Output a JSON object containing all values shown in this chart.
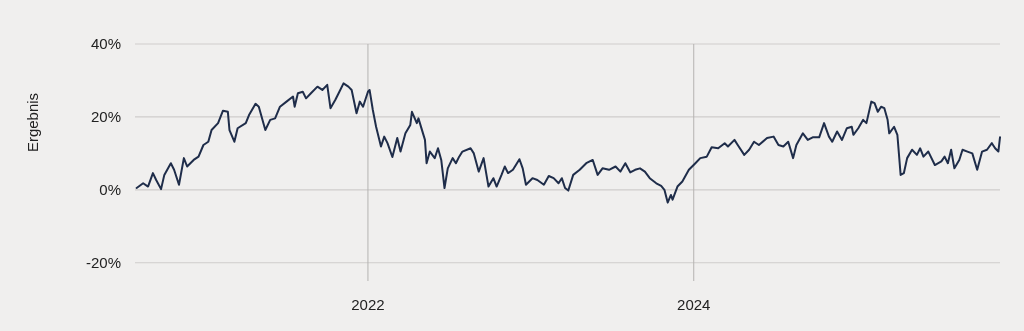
{
  "chart_data": {
    "type": "line",
    "ylabel": "Ergebnis",
    "xlim": [
      2020.57,
      2025.88
    ],
    "xticks": [
      2022,
      2024
    ],
    "ylim": [
      -25,
      40
    ],
    "yticks": [
      {
        "value": -20,
        "label": "-20%"
      },
      {
        "value": 0,
        "label": "0%"
      },
      {
        "value": 20,
        "label": "20%"
      },
      {
        "value": 40,
        "label": "40%"
      }
    ],
    "grid": true,
    "marker": "none",
    "line_style": "solid",
    "series": [
      {
        "color": "#1f2d4a",
        "x": [
          2020.58,
          2020.62,
          2020.65,
          2020.68,
          2020.7,
          2020.73,
          2020.75,
          2020.79,
          2020.81,
          2020.84,
          2020.87,
          2020.89,
          2020.93,
          2020.96,
          2020.99,
          2021.02,
          2021.04,
          2021.08,
          2021.11,
          2021.14,
          2021.15,
          2021.18,
          2021.2,
          2021.25,
          2021.27,
          2021.31,
          2021.33,
          2021.37,
          2021.4,
          2021.43,
          2021.46,
          2021.5,
          2021.54,
          2021.55,
          2021.57,
          2021.6,
          2021.62,
          2021.65,
          2021.69,
          2021.72,
          2021.75,
          2021.77,
          2021.8,
          2021.82,
          2021.85,
          2021.88,
          2021.9,
          2021.93,
          2021.95,
          2021.97,
          2022.0,
          2022.01,
          2022.03,
          2022.05,
          2022.08,
          2022.1,
          2022.12,
          2022.15,
          2022.18,
          2022.2,
          2022.23,
          2022.26,
          2022.27,
          2022.3,
          2022.31,
          2022.35,
          2022.36,
          2022.38,
          2022.41,
          2022.43,
          2022.45,
          2022.47,
          2022.49,
          2022.52,
          2022.54,
          2022.56,
          2022.58,
          2022.63,
          2022.65,
          2022.68,
          2022.71,
          2022.74,
          2022.77,
          2022.79,
          2022.82,
          2022.84,
          2022.86,
          2022.89,
          2022.93,
          2022.95,
          2022.97,
          2023.01,
          2023.04,
          2023.08,
          2023.11,
          2023.14,
          2023.17,
          2023.19,
          2023.21,
          2023.23,
          2023.26,
          2023.3,
          2023.34,
          2023.38,
          2023.41,
          2023.44,
          2023.48,
          2023.52,
          2023.55,
          2023.58,
          2023.61,
          2023.64,
          2023.67,
          2023.7,
          2023.73,
          2023.77,
          2023.8,
          2023.82,
          2023.84,
          2023.86,
          2023.87,
          2023.9,
          2023.93,
          2023.97,
          2024.01,
          2024.04,
          2024.08,
          2024.11,
          2024.15,
          2024.19,
          2024.21,
          2024.25,
          2024.27,
          2024.31,
          2024.34,
          2024.37,
          2024.4,
          2024.45,
          2024.49,
          2024.52,
          2024.55,
          2024.58,
          2024.61,
          2024.63,
          2024.67,
          2024.7,
          2024.73,
          2024.77,
          2024.8,
          2024.83,
          2024.85,
          2024.88,
          2024.91,
          2024.94,
          2024.97,
          2024.98,
          2025.01,
          2025.04,
          2025.06,
          2025.09,
          2025.11,
          2025.13,
          2025.15,
          2025.17,
          2025.19,
          2025.2,
          2025.23,
          2025.25,
          2025.27,
          2025.29,
          2025.31,
          2025.34,
          2025.37,
          2025.39,
          2025.41,
          2025.44,
          2025.48,
          2025.52,
          2025.54,
          2025.56,
          2025.58,
          2025.6,
          2025.63,
          2025.65,
          2025.68,
          2025.71,
          2025.74,
          2025.77,
          2025.8,
          2025.83,
          2025.85,
          2025.87,
          2025.88
        ],
        "values": [
          0.5,
          1.8,
          0.9,
          4.6,
          2.7,
          0.2,
          4.1,
          7.3,
          5.5,
          1.4,
          8.7,
          6.4,
          8.2,
          9.1,
          12.3,
          13.2,
          16.4,
          18.3,
          21.7,
          21.4,
          16.4,
          13.2,
          16.9,
          18.3,
          20.5,
          23.6,
          22.8,
          16.4,
          19.2,
          19.6,
          22.8,
          24.2,
          25.6,
          22.8,
          26.5,
          26.9,
          25.1,
          26.5,
          28.3,
          27.4,
          28.8,
          22.4,
          24.7,
          26.5,
          29.2,
          28.3,
          27.4,
          21.0,
          24.2,
          22.8,
          26.9,
          27.4,
          21.9,
          17.3,
          11.9,
          14.6,
          12.8,
          9.0,
          14.2,
          10.5,
          15.5,
          17.8,
          21.4,
          18.3,
          19.6,
          13.7,
          7.3,
          10.5,
          8.7,
          11.4,
          8.2,
          0.5,
          5.9,
          8.7,
          7.3,
          9.1,
          10.5,
          11.4,
          10.0,
          5.0,
          8.7,
          0.9,
          3.2,
          0.9,
          4.1,
          6.4,
          4.6,
          5.5,
          8.4,
          5.9,
          1.4,
          3.2,
          2.7,
          1.4,
          3.8,
          3.2,
          1.8,
          3.2,
          0.5,
          -0.2,
          4.1,
          5.5,
          7.3,
          8.2,
          4.1,
          5.9,
          5.5,
          6.4,
          5.0,
          7.3,
          4.8,
          5.5,
          5.9,
          5.0,
          3.2,
          1.8,
          1.1,
          0.0,
          -3.5,
          -1.4,
          -2.7,
          0.9,
          2.3,
          5.5,
          7.3,
          8.7,
          9.1,
          11.7,
          11.4,
          12.8,
          11.9,
          13.7,
          12.3,
          9.6,
          11.0,
          13.2,
          12.3,
          14.2,
          14.6,
          12.3,
          11.9,
          13.2,
          8.7,
          12.3,
          15.5,
          13.7,
          14.4,
          14.4,
          18.3,
          14.6,
          13.2,
          16.0,
          13.7,
          16.9,
          17.3,
          15.1,
          16.9,
          19.2,
          18.3,
          24.2,
          23.8,
          21.4,
          22.8,
          22.4,
          19.2,
          15.5,
          17.3,
          15.1,
          4.1,
          4.6,
          8.7,
          11.0,
          9.6,
          11.4,
          9.1,
          10.5,
          6.8,
          7.8,
          9.1,
          7.3,
          11.0,
          5.9,
          8.2,
          11.0,
          10.5,
          10.0,
          5.5,
          10.5,
          11.0,
          12.8,
          11.4,
          10.5,
          14.4
        ]
      }
    ]
  }
}
